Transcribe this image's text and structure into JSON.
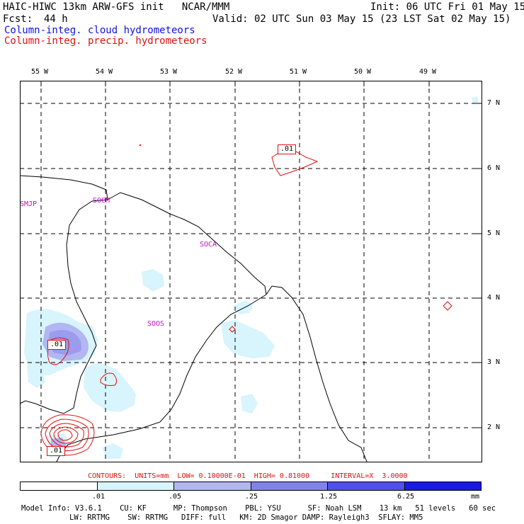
{
  "header": {
    "title_left": "HAIC-HIWC 13km ARW-GFS init   NCAR/MMM",
    "init": "Init: 06 UTC Fri 01 May 15",
    "fcst_label": "Fcst:",
    "fcst_value": "44 h",
    "valid": "Valid: 02 UTC Sun 03 May 15 (23 LST Sat 02 May 15)",
    "legend_cloud": "Column-integ. cloud hydrometeors",
    "legend_precip": "Column-integ. precip. hydrometeors"
  },
  "map": {
    "lon_labels": [
      "55 W",
      "54 W",
      "53 W",
      "52 W",
      "51 W",
      "50 W",
      "49 W"
    ],
    "lat_labels": [
      "7 N",
      "6 N",
      "5 N",
      "4 N",
      "3 N",
      "2 N"
    ],
    "stations": [
      "SMJP",
      "SOCM",
      "SOCA",
      "SOOS"
    ],
    "contour_labels": [
      ".01",
      ".01",
      ".01"
    ]
  },
  "contours_line": "CONTOURS:  UNITS=mm  LOW= 0.10000E-01  HIGH= 0.81000     INTERVAL=X  3.0000",
  "colorbar": {
    "ticks": [
      ".01",
      ".05",
      ".25",
      "1.25",
      "6.25"
    ],
    "unit": "mm",
    "colors": [
      "#ffffff",
      "#d8f4fc",
      "#b2b6f2",
      "#8282ec",
      "#5050e8",
      "#1a1ae2"
    ]
  },
  "footer": {
    "line1": "Model Info: V3.6.1    CU: KF      MP: Thompson    PBL: YSU      SF: Noah LSM    13 km   51 levels   60 sec",
    "line2": "LW: RRTMG    SW: RRTMG   DIFF: full   KM: 2D Smagor DAMP: Rayleigh3  SFLAY: MM5"
  }
}
